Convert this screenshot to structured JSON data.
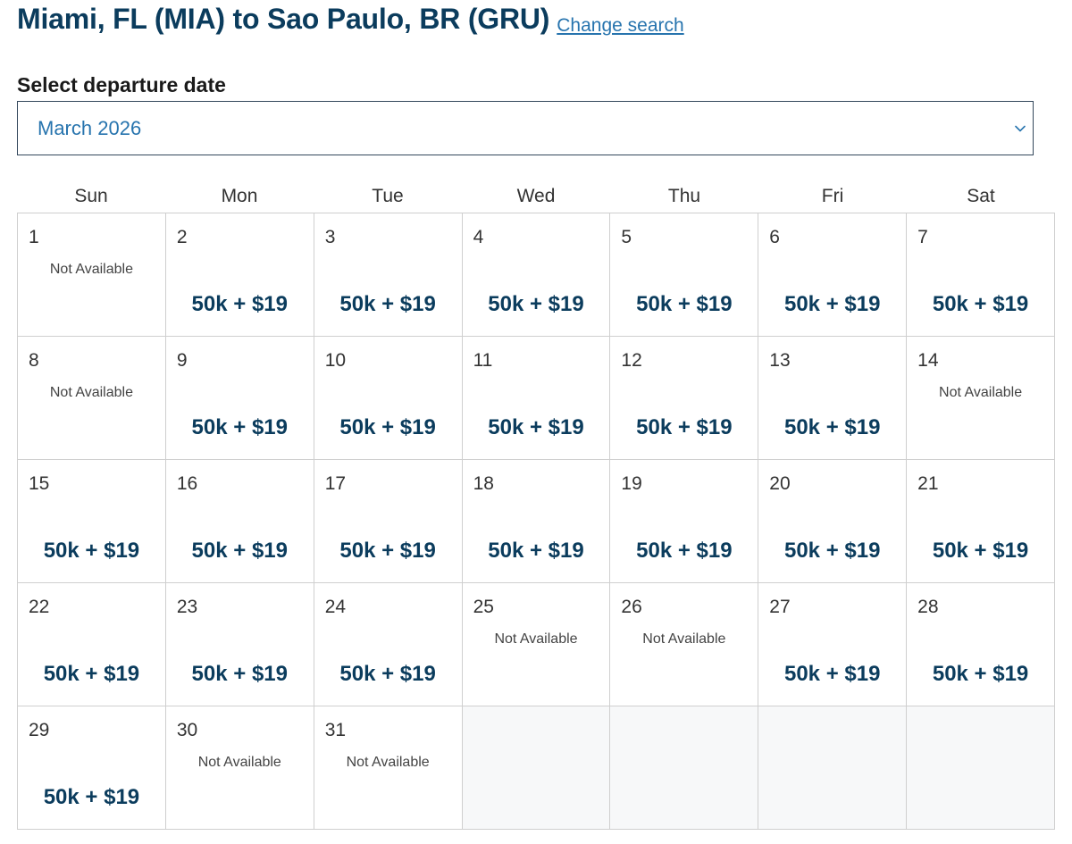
{
  "header": {
    "route_title": "Miami, FL (MIA) to Sao Paulo, BR (GRU)",
    "change_search_label": "Change search"
  },
  "date_selector": {
    "label": "Select departure date",
    "selected_month": "March 2026",
    "icon": "chevron-down-icon"
  },
  "calendar": {
    "weekdays": [
      "Sun",
      "Mon",
      "Tue",
      "Wed",
      "Thu",
      "Fri",
      "Sat"
    ],
    "leading_blanks": 0,
    "trailing_blanks": 4,
    "days": [
      {
        "day": "1",
        "status": "Not Available"
      },
      {
        "day": "2",
        "fare": "50k + $19"
      },
      {
        "day": "3",
        "fare": "50k + $19"
      },
      {
        "day": "4",
        "fare": "50k + $19"
      },
      {
        "day": "5",
        "fare": "50k + $19"
      },
      {
        "day": "6",
        "fare": "50k + $19"
      },
      {
        "day": "7",
        "fare": "50k + $19"
      },
      {
        "day": "8",
        "status": "Not Available"
      },
      {
        "day": "9",
        "fare": "50k + $19"
      },
      {
        "day": "10",
        "fare": "50k + $19"
      },
      {
        "day": "11",
        "fare": "50k + $19"
      },
      {
        "day": "12",
        "fare": "50k + $19"
      },
      {
        "day": "13",
        "fare": "50k + $19"
      },
      {
        "day": "14",
        "status": "Not Available"
      },
      {
        "day": "15",
        "fare": "50k + $19"
      },
      {
        "day": "16",
        "fare": "50k + $19"
      },
      {
        "day": "17",
        "fare": "50k + $19"
      },
      {
        "day": "18",
        "fare": "50k + $19"
      },
      {
        "day": "19",
        "fare": "50k + $19"
      },
      {
        "day": "20",
        "fare": "50k + $19"
      },
      {
        "day": "21",
        "fare": "50k + $19"
      },
      {
        "day": "22",
        "fare": "50k + $19"
      },
      {
        "day": "23",
        "fare": "50k + $19"
      },
      {
        "day": "24",
        "fare": "50k + $19"
      },
      {
        "day": "25",
        "status": "Not Available"
      },
      {
        "day": "26",
        "status": "Not Available"
      },
      {
        "day": "27",
        "fare": "50k + $19"
      },
      {
        "day": "28",
        "fare": "50k + $19"
      },
      {
        "day": "29",
        "fare": "50k + $19"
      },
      {
        "day": "30",
        "status": "Not Available"
      },
      {
        "day": "31",
        "status": "Not Available"
      }
    ]
  },
  "colors": {
    "title": "#0b3c5d",
    "link": "#2774ae",
    "fare": "#0b3c5d",
    "grid_border": "#cfcfcf"
  }
}
